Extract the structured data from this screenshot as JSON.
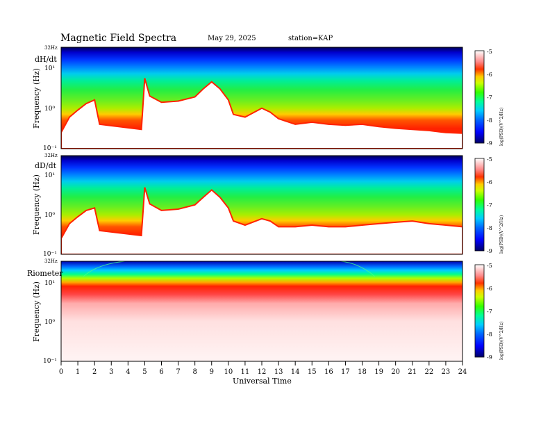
{
  "header": {
    "title": "Magnetic  Field  Spectra",
    "date": "May 29, 2025",
    "station": "station=KAP"
  },
  "chart_data": [
    {
      "type": "heatmap",
      "panel_label": "dH/dt",
      "top_label": "32Hz",
      "ylabel": "Frequency  (Hz)",
      "yticks": [
        "10¹",
        "10⁰",
        "10⁻¹"
      ],
      "scale": "log",
      "ylim": [
        0.1,
        32
      ],
      "xlim": [
        0,
        24
      ],
      "colorbar": {
        "ticks": [
          "-5",
          "-6",
          "-7",
          "-8",
          "-9"
        ],
        "label": "log(PSD)(V^2/Hz)",
        "range": [
          -9,
          -5
        ]
      },
      "noise_floor_hz": [
        [
          0,
          0.25
        ],
        [
          0.5,
          0.6
        ],
        [
          1,
          0.9
        ],
        [
          1.5,
          1.3
        ],
        [
          2,
          1.6
        ],
        [
          2.3,
          0.4
        ],
        [
          4.8,
          0.3
        ],
        [
          5,
          5.5
        ],
        [
          5.3,
          2
        ],
        [
          6,
          1.4
        ],
        [
          7,
          1.5
        ],
        [
          8,
          1.9
        ],
        [
          8.5,
          3
        ],
        [
          9,
          4.5
        ],
        [
          9.5,
          3
        ],
        [
          10,
          1.6
        ],
        [
          10.3,
          0.7
        ],
        [
          11,
          0.6
        ],
        [
          12,
          1.0
        ],
        [
          12.5,
          0.8
        ],
        [
          13,
          0.55
        ],
        [
          14,
          0.4
        ],
        [
          15,
          0.45
        ],
        [
          16,
          0.4
        ],
        [
          17,
          0.38
        ],
        [
          18,
          0.4
        ],
        [
          19,
          0.35
        ],
        [
          20,
          0.32
        ],
        [
          21,
          0.3
        ],
        [
          22,
          0.28
        ],
        [
          23,
          0.25
        ],
        [
          24,
          0.24
        ]
      ]
    },
    {
      "type": "heatmap",
      "panel_label": "dD/dt",
      "top_label": "32Hz",
      "ylabel": "Frequency  (Hz)",
      "yticks": [
        "10¹",
        "10⁰",
        "10⁻¹"
      ],
      "scale": "log",
      "ylim": [
        0.1,
        32
      ],
      "xlim": [
        0,
        24
      ],
      "colorbar": {
        "ticks": [
          "-5",
          "-6",
          "-7",
          "-8",
          "-9"
        ],
        "label": "log(PSD)(V^2/Hz)",
        "range": [
          -9,
          -5
        ]
      },
      "noise_floor_hz": [
        [
          0,
          0.25
        ],
        [
          0.5,
          0.6
        ],
        [
          1,
          0.9
        ],
        [
          1.5,
          1.3
        ],
        [
          2,
          1.5
        ],
        [
          2.3,
          0.4
        ],
        [
          4.8,
          0.3
        ],
        [
          5,
          5
        ],
        [
          5.3,
          1.9
        ],
        [
          6,
          1.3
        ],
        [
          7,
          1.4
        ],
        [
          8,
          1.8
        ],
        [
          8.5,
          2.8
        ],
        [
          9,
          4.3
        ],
        [
          9.5,
          2.8
        ],
        [
          10,
          1.5
        ],
        [
          10.3,
          0.7
        ],
        [
          11,
          0.55
        ],
        [
          12,
          0.8
        ],
        [
          12.5,
          0.7
        ],
        [
          13,
          0.5
        ],
        [
          14,
          0.5
        ],
        [
          15,
          0.55
        ],
        [
          16,
          0.5
        ],
        [
          17,
          0.5
        ],
        [
          18,
          0.55
        ],
        [
          19,
          0.6
        ],
        [
          20,
          0.65
        ],
        [
          21,
          0.7
        ],
        [
          22,
          0.6
        ],
        [
          23,
          0.55
        ],
        [
          24,
          0.5
        ]
      ]
    },
    {
      "type": "heatmap",
      "panel_label": "Riometer",
      "top_label": "32Hz",
      "ylabel": "Frequency  (Hz)",
      "yticks": [
        "10¹",
        "10⁰",
        "10⁻¹"
      ],
      "scale": "log",
      "ylim": [
        0.1,
        32
      ],
      "xlim": [
        0,
        24
      ],
      "colorbar": {
        "ticks": [
          "-5",
          "-6",
          "-7",
          "-8",
          "-9"
        ],
        "label": "log(PSD)(V^2/Hz)",
        "range": [
          -9,
          -5
        ]
      },
      "noise_floor_hz": []
    }
  ],
  "x_axis": {
    "label": "Universal  Time",
    "ticks": [
      "0",
      "1",
      "2",
      "3",
      "4",
      "5",
      "6",
      "7",
      "8",
      "9",
      "10",
      "11",
      "12",
      "13",
      "14",
      "15",
      "16",
      "17",
      "18",
      "19",
      "20",
      "21",
      "22",
      "23",
      "24"
    ]
  }
}
